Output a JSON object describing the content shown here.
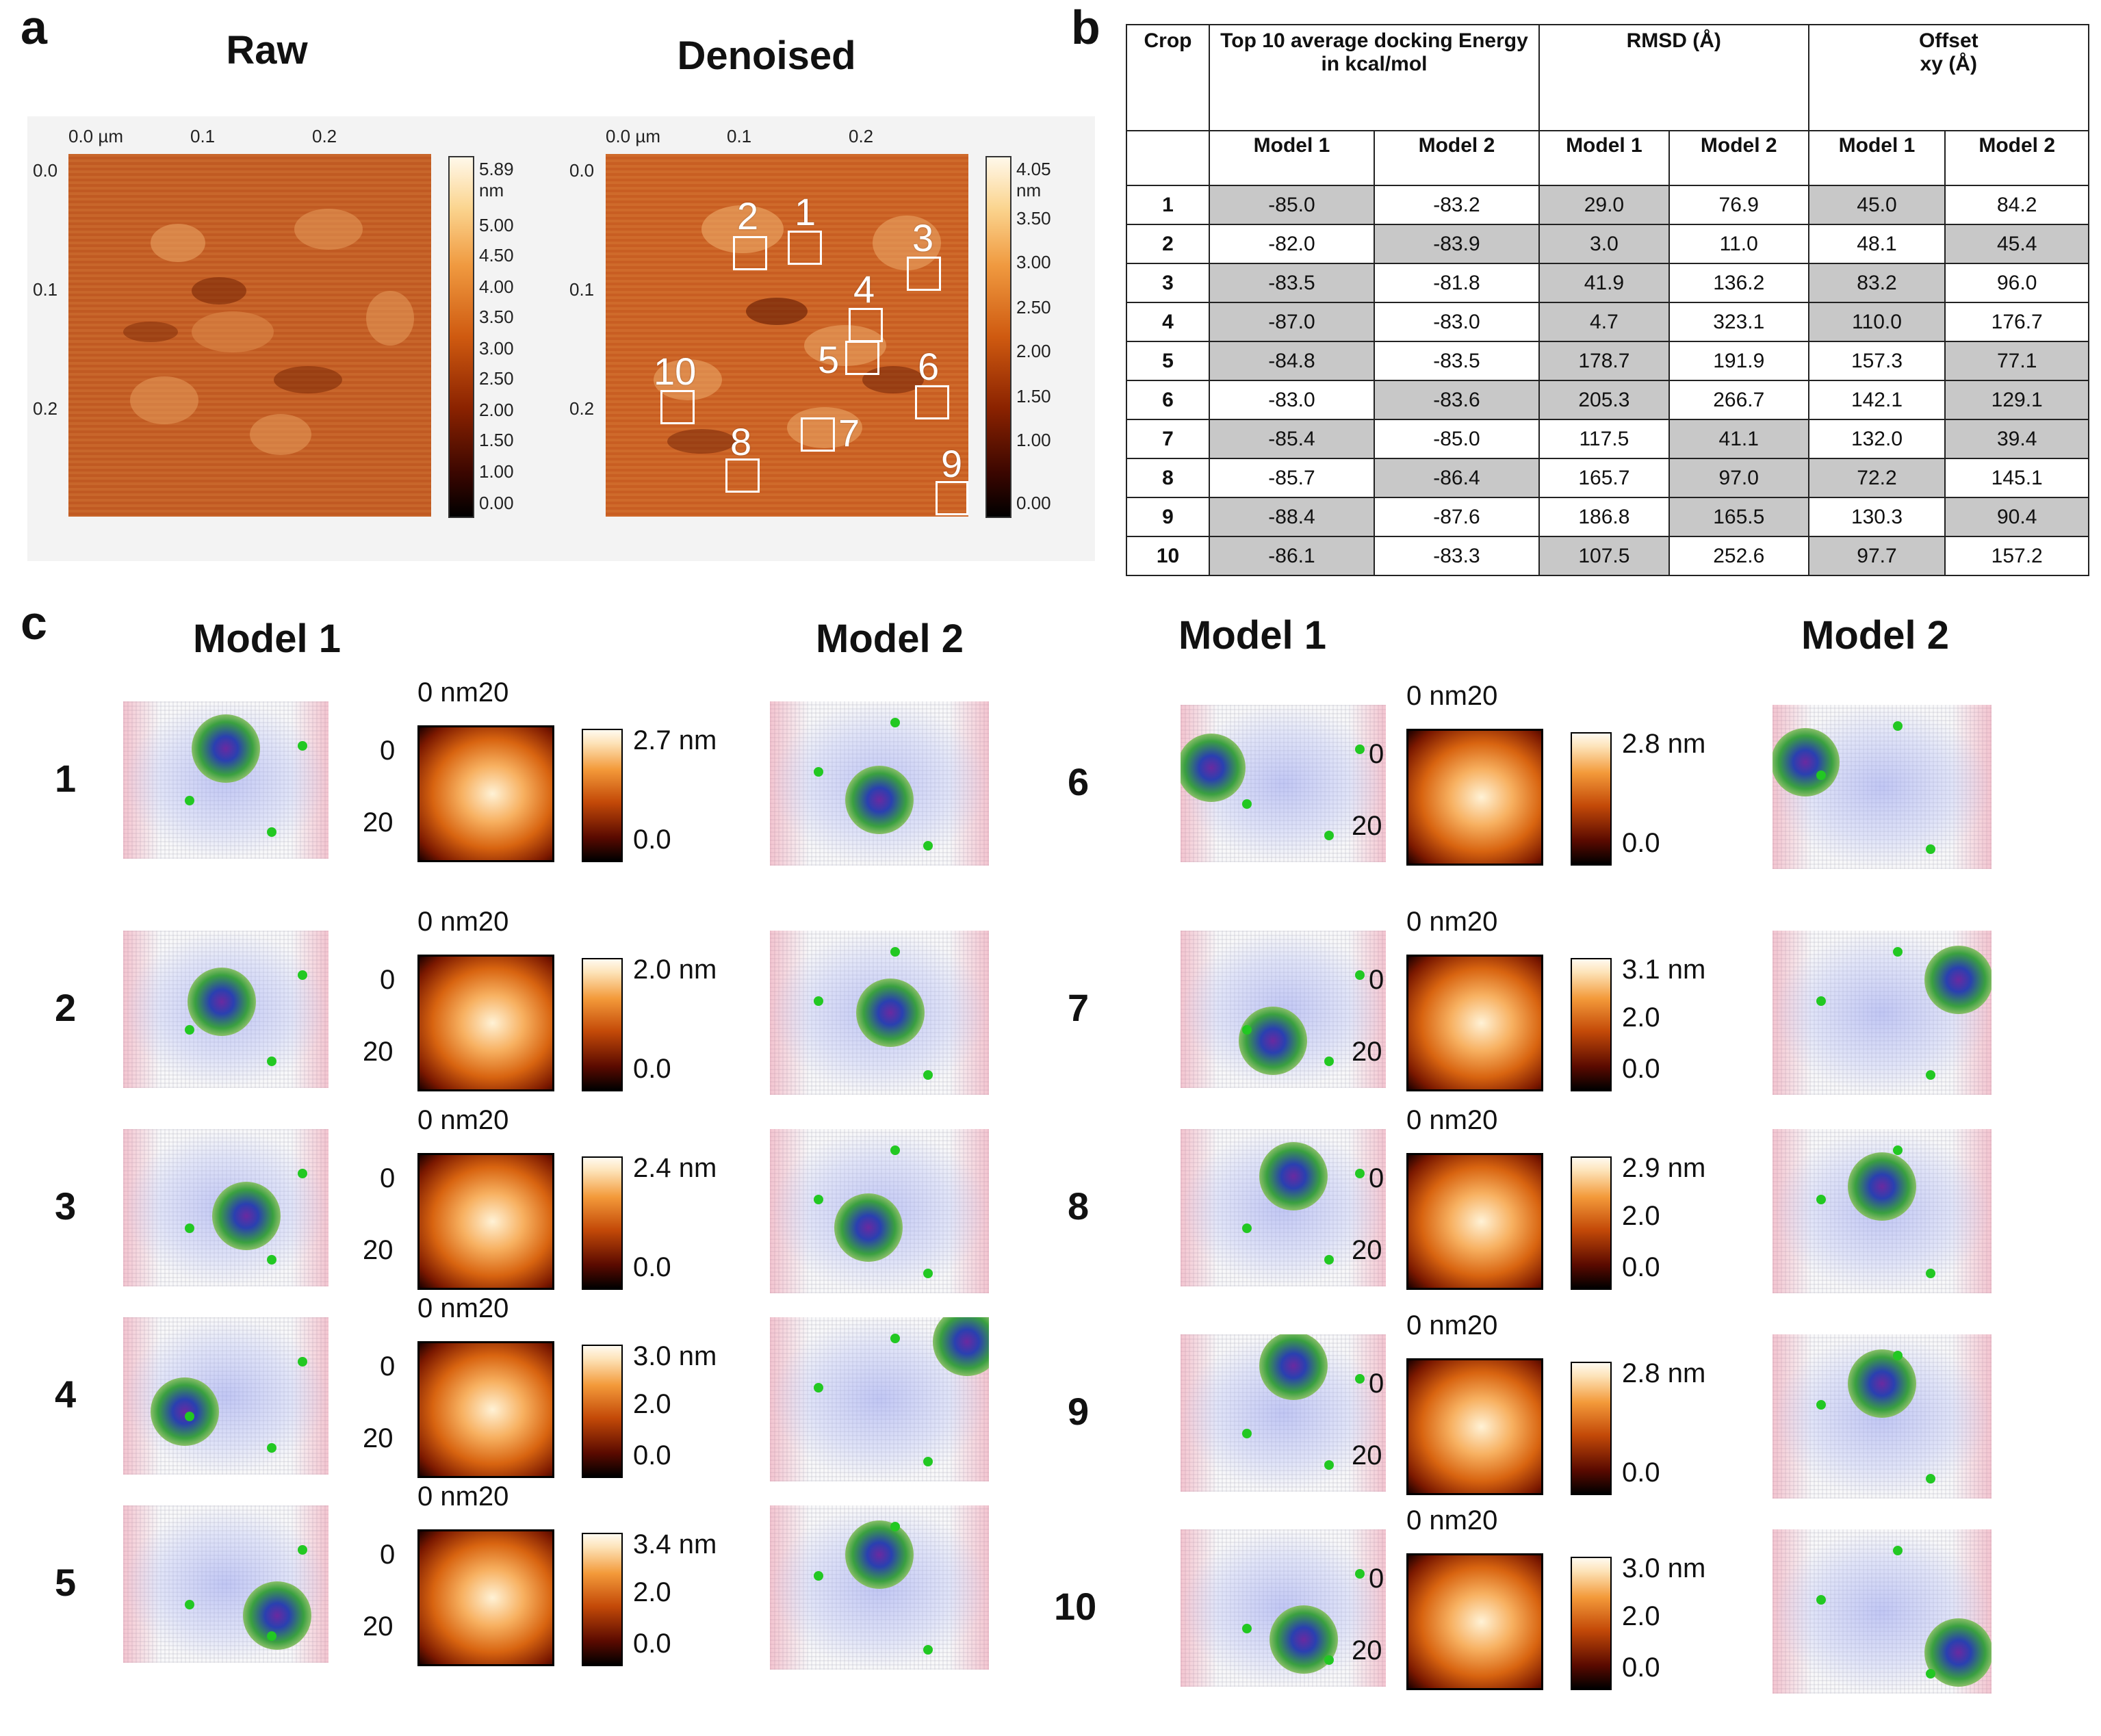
{
  "panel_a": {
    "label": "a",
    "raw": {
      "title": "Raw",
      "x_ticks": [
        "0.0 µm",
        "0.1",
        "0.2"
      ],
      "y_ticks": [
        "0.0",
        "0.1",
        "0.2"
      ],
      "colorbar_ticks": [
        "5.89 nm",
        "5.00",
        "4.50",
        "4.00",
        "3.50",
        "3.00",
        "2.50",
        "2.00",
        "1.50",
        "1.00",
        "0.00"
      ]
    },
    "denoised": {
      "title": "Denoised",
      "x_ticks": [
        "0.0 µm",
        "0.1",
        "0.2"
      ],
      "y_ticks": [
        "0.0",
        "0.1",
        "0.2"
      ],
      "colorbar_ticks": [
        "4.05 nm",
        "3.50",
        "3.00",
        "2.50",
        "2.00",
        "1.50",
        "1.00",
        "0.00"
      ],
      "boxes": [
        "1",
        "2",
        "3",
        "4",
        "5",
        "6",
        "7",
        "8",
        "9",
        "10"
      ]
    }
  },
  "panel_b": {
    "label": "b",
    "headers": {
      "crop": "Crop",
      "energy": "Top 10 average docking Energy in kcal/mol",
      "rmsd": "RMSD (Å)",
      "offset_line1": "Offset",
      "offset_line2": "xy (Å)",
      "model1": "Model 1",
      "model2": "Model 2"
    },
    "rows": [
      {
        "crop": "1",
        "e1": "-85.0",
        "e2": "-83.2",
        "r1": "29.0",
        "r2": "76.9",
        "o1": "45.0",
        "o2": "84.2",
        "hl": [
          1,
          0,
          1,
          0,
          1,
          0
        ]
      },
      {
        "crop": "2",
        "e1": "-82.0",
        "e2": "-83.9",
        "r1": "3.0",
        "r2": "11.0",
        "o1": "48.1",
        "o2": "45.4",
        "hl": [
          0,
          1,
          1,
          0,
          0,
          1
        ]
      },
      {
        "crop": "3",
        "e1": "-83.5",
        "e2": "-81.8",
        "r1": "41.9",
        "r2": "136.2",
        "o1": "83.2",
        "o2": "96.0",
        "hl": [
          1,
          0,
          1,
          0,
          1,
          0
        ]
      },
      {
        "crop": "4",
        "e1": "-87.0",
        "e2": "-83.0",
        "r1": "4.7",
        "r2": "323.1",
        "o1": "110.0",
        "o2": "176.7",
        "hl": [
          1,
          0,
          1,
          0,
          1,
          0
        ]
      },
      {
        "crop": "5",
        "e1": "-84.8",
        "e2": "-83.5",
        "r1": "178.7",
        "r2": "191.9",
        "o1": "157.3",
        "o2": "77.1",
        "hl": [
          1,
          0,
          1,
          0,
          0,
          1
        ]
      },
      {
        "crop": "6",
        "e1": "-83.0",
        "e2": "-83.6",
        "r1": "205.3",
        "r2": "266.7",
        "o1": "142.1",
        "o2": "129.1",
        "hl": [
          0,
          1,
          1,
          0,
          0,
          1
        ]
      },
      {
        "crop": "7",
        "e1": "-85.4",
        "e2": "-85.0",
        "r1": "117.5",
        "r2": "41.1",
        "o1": "132.0",
        "o2": "39.4",
        "hl": [
          1,
          0,
          0,
          1,
          0,
          1
        ]
      },
      {
        "crop": "8",
        "e1": "-85.7",
        "e2": "-86.4",
        "r1": "165.7",
        "r2": "97.0",
        "o1": "72.2",
        "o2": "145.1",
        "hl": [
          0,
          1,
          0,
          1,
          1,
          0
        ]
      },
      {
        "crop": "9",
        "e1": "-88.4",
        "e2": "-87.6",
        "r1": "186.8",
        "r2": "165.5",
        "o1": "130.3",
        "o2": "90.4",
        "hl": [
          1,
          0,
          0,
          1,
          0,
          1
        ]
      },
      {
        "crop": "10",
        "e1": "-86.1",
        "e2": "-83.3",
        "r1": "107.5",
        "r2": "252.6",
        "o1": "97.7",
        "o2": "157.2",
        "hl": [
          1,
          0,
          1,
          0,
          1,
          0
        ]
      }
    ]
  },
  "panel_c": {
    "label": "c",
    "model1": "Model 1",
    "model2": "Model  2",
    "axis_top": "0 nm20",
    "tick0": "0",
    "tick20": "20",
    "rows": [
      {
        "id": "1",
        "cbar_max": "2.7 nm",
        "cbar_mid": "",
        "cbar_min": "0.0"
      },
      {
        "id": "2",
        "cbar_max": "2.0 nm",
        "cbar_mid": "",
        "cbar_min": "0.0"
      },
      {
        "id": "3",
        "cbar_max": "2.4 nm",
        "cbar_mid": "",
        "cbar_min": "0.0"
      },
      {
        "id": "4",
        "cbar_max": "3.0 nm",
        "cbar_mid": "2.0",
        "cbar_min": "0.0"
      },
      {
        "id": "5",
        "cbar_max": "3.4 nm",
        "cbar_mid": "2.0",
        "cbar_min": "0.0"
      },
      {
        "id": "6",
        "cbar_max": "2.8 nm",
        "cbar_mid": "",
        "cbar_min": "0.0"
      },
      {
        "id": "7",
        "cbar_max": "3.1 nm",
        "cbar_mid": "2.0",
        "cbar_min": "0.0"
      },
      {
        "id": "8",
        "cbar_max": "2.9 nm",
        "cbar_mid": "2.0",
        "cbar_min": "0.0"
      },
      {
        "id": "9",
        "cbar_max": "2.8 nm",
        "cbar_mid": "",
        "cbar_min": "0.0"
      },
      {
        "id": "10",
        "cbar_max": "3.0 nm",
        "cbar_mid": "2.0",
        "cbar_min": "0.0"
      }
    ]
  },
  "colors": {
    "afm_base": "#c05a22",
    "highlight": "#c8c8c8",
    "ligand": "#22c822"
  }
}
